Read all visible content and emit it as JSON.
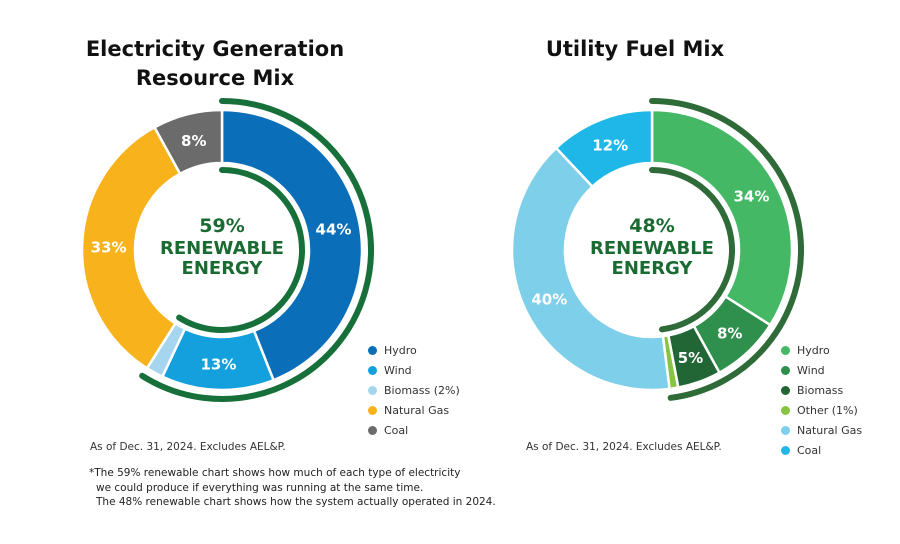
{
  "chart_data": [
    {
      "type": "pie",
      "title_lines": [
        "Electricity Generation",
        "Resource Mix"
      ],
      "center_label": [
        "59%",
        "RENEWABLE",
        "ENERGY"
      ],
      "renewable_percent": 59,
      "slices": [
        {
          "name": "Hydro",
          "value": 44,
          "label": "44%",
          "color": "#0a6fb8"
        },
        {
          "name": "Wind",
          "value": 13,
          "label": "13%",
          "color": "#13a0dc"
        },
        {
          "name": "Biomass (2%)",
          "value": 2,
          "label": "",
          "color": "#a6d6ef"
        },
        {
          "name": "Natural Gas",
          "value": 33,
          "label": "33%",
          "color": "#f7b21c"
        },
        {
          "name": "Coal",
          "value": 8,
          "label": "8%",
          "color": "#6b6b6b"
        }
      ],
      "renewable_arc_color": "#17703a",
      "note": "As of Dec. 31, 2024. Excludes AEL&P."
    },
    {
      "type": "pie",
      "title_lines": [
        "Utility Fuel Mix"
      ],
      "center_label": [
        "48%",
        "RENEWABLE",
        "ENERGY"
      ],
      "renewable_percent": 48,
      "slices": [
        {
          "name": "Hydro",
          "value": 34,
          "label": "34%",
          "color": "#45b865"
        },
        {
          "name": "Wind",
          "value": 8,
          "label": "8%",
          "color": "#2f8f4c"
        },
        {
          "name": "Biomass",
          "value": 5,
          "label": "5%",
          "color": "#226635"
        },
        {
          "name": "Other (1%)",
          "value": 1,
          "label": "",
          "color": "#86c441"
        },
        {
          "name": "Natural Gas",
          "value": 40,
          "label": "40%",
          "color": "#7ecfea"
        },
        {
          "name": "Coal",
          "value": 12,
          "label": "12%",
          "color": "#1fb7e8"
        }
      ],
      "renewable_arc_color": "#2f6b38",
      "note": "As of Dec. 31, 2024. Excludes AEL&P."
    }
  ],
  "footnote": [
    "*The 59% renewable chart shows how much of each type of electricity",
    "we could produce if everything was running at the same time.",
    "The 48% renewable chart shows how the system actually operated in 2024."
  ]
}
